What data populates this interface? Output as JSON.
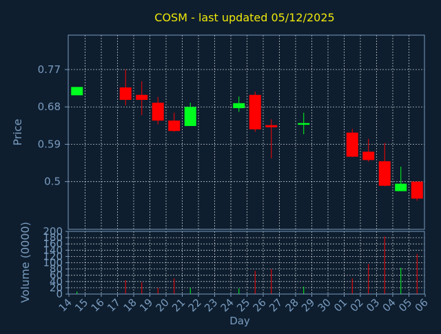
{
  "chart_data": {
    "type": "candlestick",
    "title": "COSM - last updated 05/12/2025",
    "xlabel": "Day",
    "price_panel": {
      "ylabel": "Price",
      "ylim": [
        0.385,
        0.853
      ],
      "yticks": [
        0.5,
        0.59,
        0.68,
        0.77
      ],
      "ytick_labels": [
        "0.5",
        "0.59",
        "0.68",
        "0.77"
      ],
      "grid": true
    },
    "volume_panel": {
      "ylabel": "Volume (0000)",
      "ylim": [
        0,
        200
      ],
      "yticks": [
        0,
        20,
        40,
        60,
        80,
        100,
        120,
        140,
        160,
        180,
        200
      ],
      "ytick_labels": [
        "0",
        "20",
        "40",
        "60",
        "80",
        "100",
        "120",
        "140",
        "160",
        "180",
        "200"
      ],
      "grid": true
    },
    "x_ticks": [
      "14",
      "15",
      "16",
      "17",
      "18",
      "19",
      "20",
      "21",
      "22",
      "23",
      "24",
      "25",
      "26",
      "27",
      "28",
      "29",
      "30",
      "01",
      "02",
      "03",
      "04",
      "05",
      "06"
    ],
    "candles": [
      {
        "day": "14",
        "open": 0.708,
        "high": 0.728,
        "low": 0.708,
        "close": 0.728
      },
      {
        "day": "17",
        "open": 0.727,
        "high": 0.77,
        "low": 0.684,
        "close": 0.697
      },
      {
        "day": "18",
        "open": 0.709,
        "high": 0.742,
        "low": 0.66,
        "close": 0.697
      },
      {
        "day": "19",
        "open": 0.69,
        "high": 0.704,
        "low": 0.638,
        "close": 0.647
      },
      {
        "day": "20",
        "open": 0.647,
        "high": 0.666,
        "low": 0.62,
        "close": 0.622
      },
      {
        "day": "21",
        "open": 0.634,
        "high": 0.69,
        "low": 0.634,
        "close": 0.68
      },
      {
        "day": "24",
        "open": 0.677,
        "high": 0.705,
        "low": 0.668,
        "close": 0.689
      },
      {
        "day": "25",
        "open": 0.709,
        "high": 0.717,
        "low": 0.62,
        "close": 0.626
      },
      {
        "day": "26",
        "open": 0.636,
        "high": 0.65,
        "low": 0.556,
        "close": 0.631
      },
      {
        "day": "28",
        "open": 0.637,
        "high": 0.666,
        "low": 0.614,
        "close": 0.641
      },
      {
        "day": "01",
        "open": 0.618,
        "high": 0.627,
        "low": 0.559,
        "close": 0.56
      },
      {
        "day": "02",
        "open": 0.572,
        "high": 0.603,
        "low": 0.548,
        "close": 0.552
      },
      {
        "day": "03",
        "open": 0.549,
        "high": 0.593,
        "low": 0.489,
        "close": 0.49
      },
      {
        "day": "04",
        "open": 0.477,
        "high": 0.536,
        "low": 0.477,
        "close": 0.495
      },
      {
        "day": "05",
        "open": 0.5,
        "high": 0.5,
        "low": 0.454,
        "close": 0.459
      }
    ],
    "volume": [
      {
        "day": "14",
        "value": 8
      },
      {
        "day": "17",
        "value": 44
      },
      {
        "day": "18",
        "value": 38
      },
      {
        "day": "19",
        "value": 20
      },
      {
        "day": "20",
        "value": 50
      },
      {
        "day": "21",
        "value": 20
      },
      {
        "day": "24",
        "value": 18
      },
      {
        "day": "25",
        "value": 74
      },
      {
        "day": "26",
        "value": 80
      },
      {
        "day": "28",
        "value": 24
      },
      {
        "day": "01",
        "value": 50
      },
      {
        "day": "02",
        "value": 96
      },
      {
        "day": "03",
        "value": 184
      },
      {
        "day": "04",
        "value": 84
      },
      {
        "day": "05",
        "value": 128
      }
    ],
    "colors": {
      "background": "#0e1e2f",
      "title": "#f0e80a",
      "axis_text": "#7a9cbf",
      "grid": "#ffffff",
      "up": "#00ff1e",
      "down": "#ff0000"
    }
  }
}
